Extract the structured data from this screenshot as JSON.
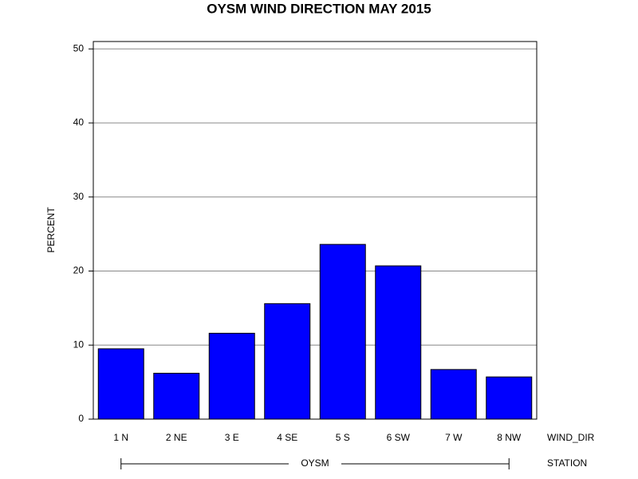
{
  "chart_data": {
    "type": "bar",
    "title": "OYSM WIND DIRECTION MAY 2015",
    "y_label": "PERCENT",
    "x_label": "WIND_DIR",
    "group_label": "STATION",
    "group": "OYSM",
    "categories": [
      "1 N",
      "2 NE",
      "3 E",
      "4 SE",
      "5 S",
      "6 SW",
      "7 W",
      "8 NW"
    ],
    "values": [
      9.5,
      6.2,
      11.6,
      15.6,
      23.6,
      20.7,
      6.7,
      5.7
    ],
    "color": "#0000ff",
    "ylim": [
      0,
      51
    ],
    "yticks": [
      0,
      10,
      20,
      30,
      40,
      50
    ],
    "grid": true
  }
}
